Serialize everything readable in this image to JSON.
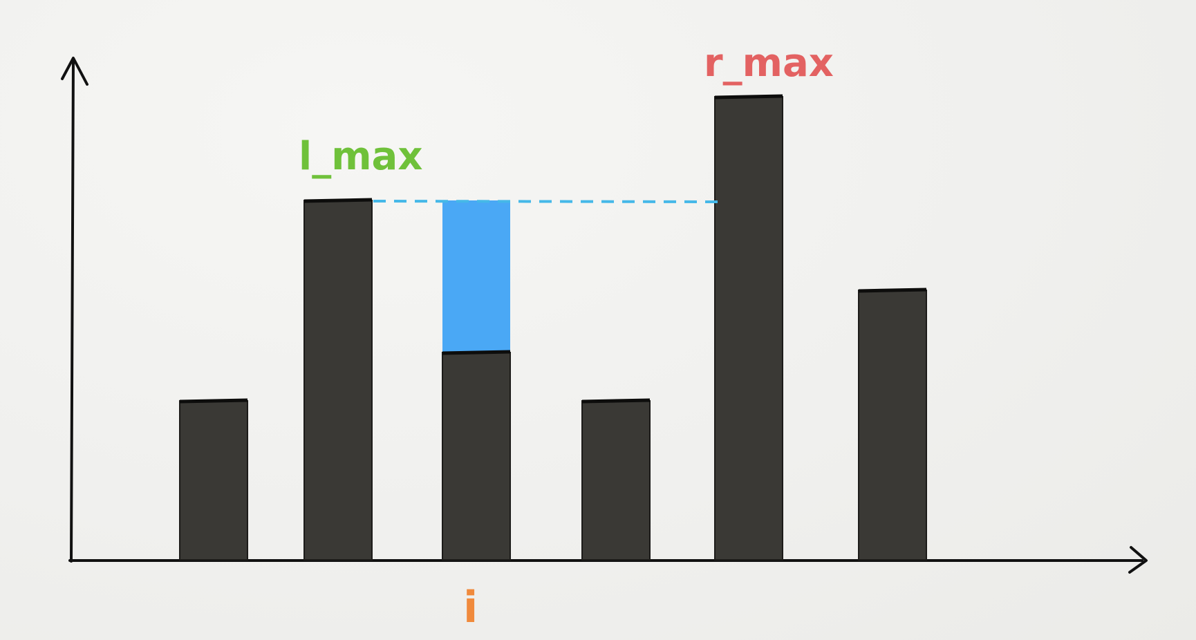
{
  "diagram": {
    "labels": {
      "left_max": "l_max",
      "right_max": "r_max",
      "index": "i"
    },
    "colors": {
      "bar": "#3a3935",
      "water": "#4aa8f5",
      "dash": "#45b8e8",
      "axis": "#111111",
      "left_max_label": "#6fc13a",
      "right_max_label": "#e36262",
      "index_label": "#f08a3c"
    },
    "bars": [
      {
        "height": 2.3
      },
      {
        "height": 5.2
      },
      {
        "height": 3.0,
        "water_to": 5.2,
        "is_index": true
      },
      {
        "height": 2.3
      },
      {
        "height": 6.7
      },
      {
        "height": 3.9
      }
    ]
  }
}
